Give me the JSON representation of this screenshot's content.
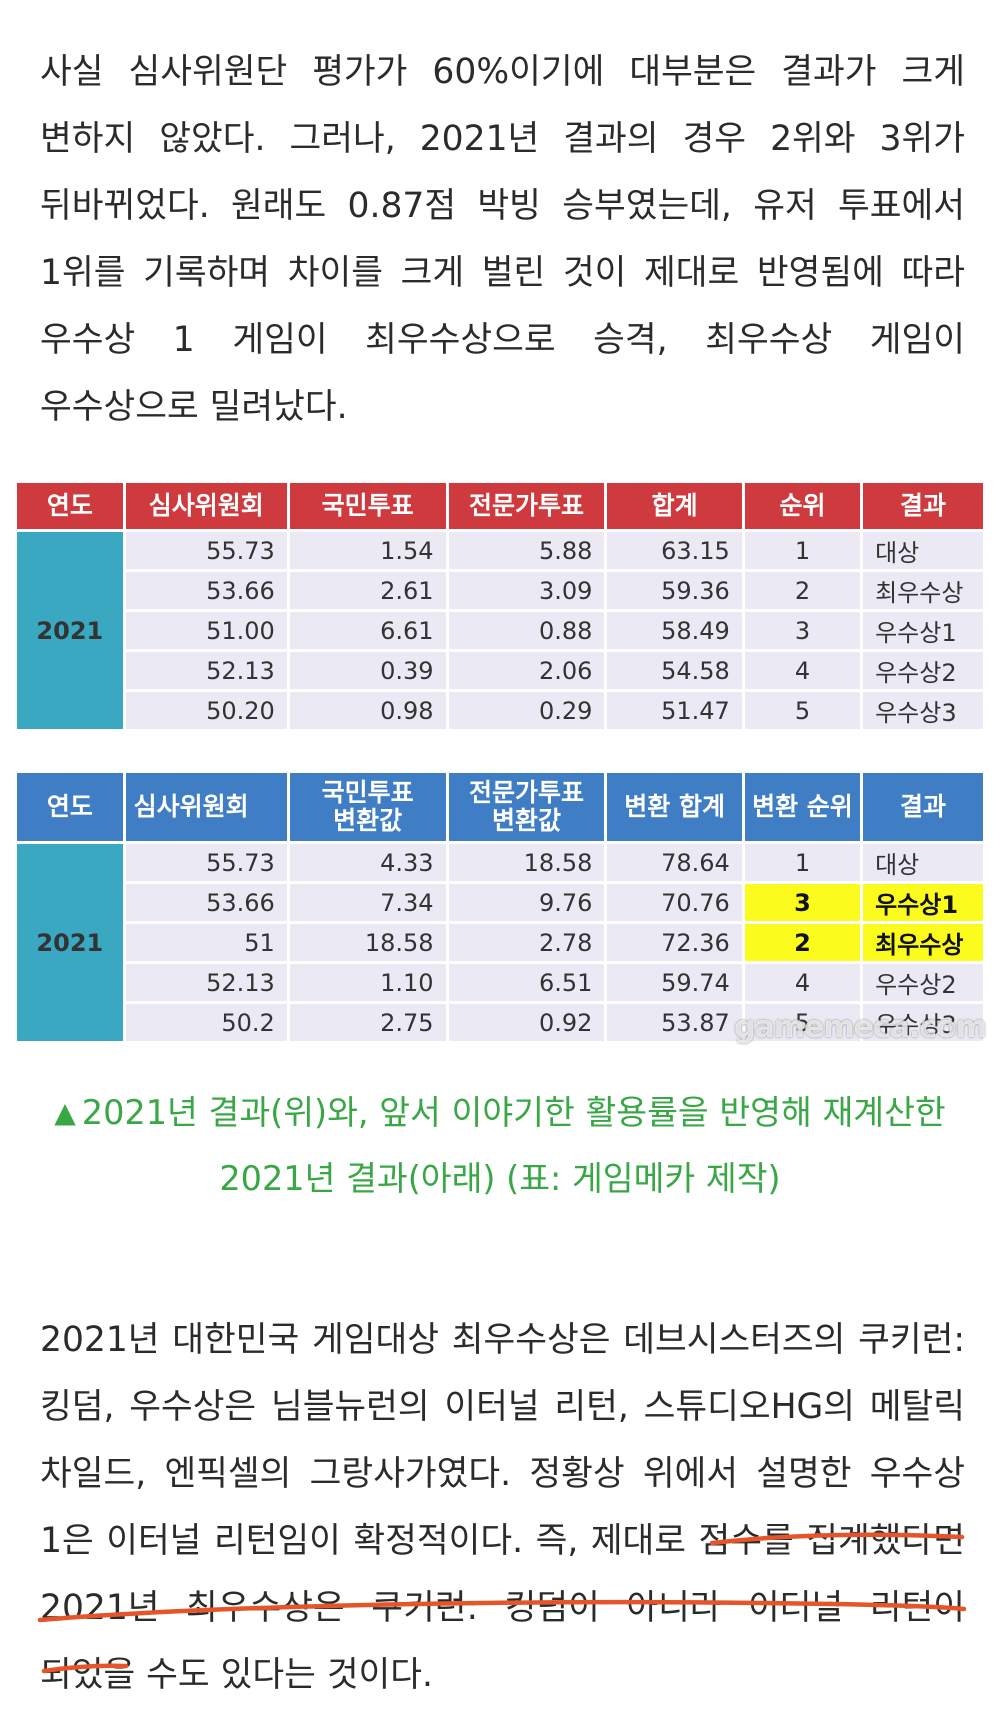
{
  "paragraph_top": "사실 심사위원단 평가가 60%이기에 대부분은 결과가 크게 변하지 않았다. 그러나, 2021년 결과의 경우 2위와 3위가 뒤바뀌었다. 원래도 0.87점 박빙 승부였는데, 유저 투표에서 1위를 기록하며 차이를 크게 벌린 것이 제대로 반영됨에 따라 우수상 1 게임이 최우수상으로 승격, 최우수상 게임이 우수상으로 밀려났다.",
  "table_original": {
    "headers": [
      "연도",
      "심사위원회",
      "국민투표",
      "전문가투표",
      "합계",
      "순위",
      "결과"
    ],
    "year": "2021",
    "rows": [
      [
        "55.73",
        "1.54",
        "5.88",
        "63.15",
        "1",
        "대상"
      ],
      [
        "53.66",
        "2.61",
        "3.09",
        "59.36",
        "2",
        "최우수상"
      ],
      [
        "51.00",
        "6.61",
        "0.88",
        "58.49",
        "3",
        "우수상1"
      ],
      [
        "52.13",
        "0.39",
        "2.06",
        "54.58",
        "4",
        "우수상2"
      ],
      [
        "50.20",
        "0.98",
        "0.29",
        "51.47",
        "5",
        "우수상3"
      ]
    ]
  },
  "table_converted": {
    "headers": [
      "연도",
      "심사위원회",
      "국민투표\n변환값",
      "전문가투표\n변환값",
      "변환 합계",
      "변환 순위",
      "결과"
    ],
    "year": "2021",
    "rows": [
      [
        "55.73",
        "4.33",
        "18.58",
        "78.64",
        "1",
        "대상"
      ],
      [
        "53.66",
        "7.34",
        "9.76",
        "70.76",
        "3",
        "우수상1"
      ],
      [
        "51",
        "18.58",
        "2.78",
        "72.36",
        "2",
        "최우수상"
      ],
      [
        "52.13",
        "1.10",
        "6.51",
        "59.74",
        "4",
        "우수상2"
      ],
      [
        "50.2",
        "2.75",
        "0.92",
        "53.87",
        "5",
        "우수상3"
      ]
    ],
    "highlight_color": "#fbfb1e"
  },
  "watermark": "gamemeca.com",
  "caption": {
    "line1": "2021년 결과(위)와, 앞서 이야기한 활용률을 반영해 재계산한",
    "line2": "2021년 결과(아래) (표: 게임메카 제작)",
    "color": "#3aa746"
  },
  "paragraph_bottom": "2021년 대한민국 게임대상 최우수상은 데브시스터즈의 쿠키런: 킹덤, 우수상은 님블뉴런의 이터널 리턴, 스튜디오HG의 메탈릭 차일드, 엔픽셀의 그랑사가였다. 정황상 위에서 설명한 우수상 1은 이터널 리턴임이 확정적이다. 즉, 제대로 점수를 집계했다면 2021년 최우수상은 쿠키런: 킹덤이 아니라 이터널 리턴이 되었을 수도 있다는 것이다.",
  "underline_color": "#e8542a"
}
